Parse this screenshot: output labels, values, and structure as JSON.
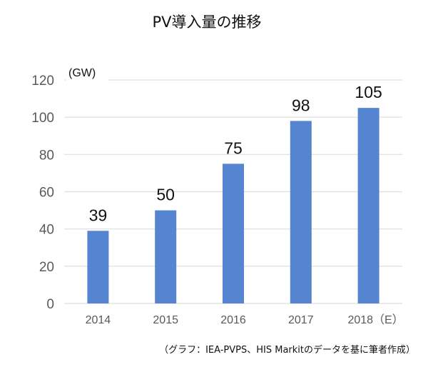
{
  "chart_data": {
    "type": "bar",
    "title": "PV導入量の推移",
    "unit_label": "(GW)",
    "categories": [
      "2014",
      "2015",
      "2016",
      "2017",
      "2018（E）"
    ],
    "values": [
      39,
      50,
      75,
      98,
      105
    ],
    "data_labels": [
      "39",
      "50",
      "75",
      "98",
      "105"
    ],
    "ylim": [
      0,
      120
    ],
    "yticks": [
      0,
      20,
      40,
      60,
      80,
      100,
      120
    ],
    "grid": true,
    "xlabel": "",
    "ylabel": "(GW)",
    "bar_color": "#5585d0",
    "grid_color": "#dedede",
    "source": "（グラフ：IEA-PVPS、HIS Markitのデータを基に筆者作成）"
  }
}
